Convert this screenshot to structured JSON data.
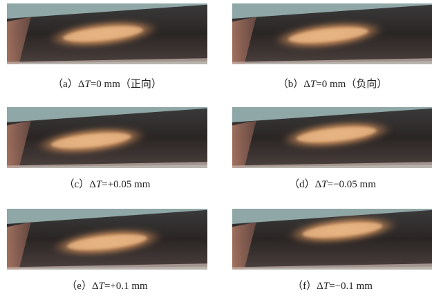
{
  "figure": {
    "panels": [
      {
        "label": "（a）",
        "delta": "Δ",
        "var": "T",
        "condition": "=0 mm（正向）"
      },
      {
        "label": "（b）",
        "delta": "Δ",
        "var": "T",
        "condition": "=0 mm（负向）"
      },
      {
        "label": "（c）",
        "delta": "Δ",
        "var": "T",
        "condition": "=+0.05 mm"
      },
      {
        "label": "（d）",
        "delta": "Δ",
        "var": "T",
        "condition": "=−0.05 mm"
      },
      {
        "label": "（e）",
        "delta": "Δ",
        "var": "T",
        "condition": "=+0.1 mm"
      },
      {
        "label": "（f）",
        "delta": "Δ",
        "var": "T",
        "condition": "=−0.1 mm"
      }
    ]
  }
}
